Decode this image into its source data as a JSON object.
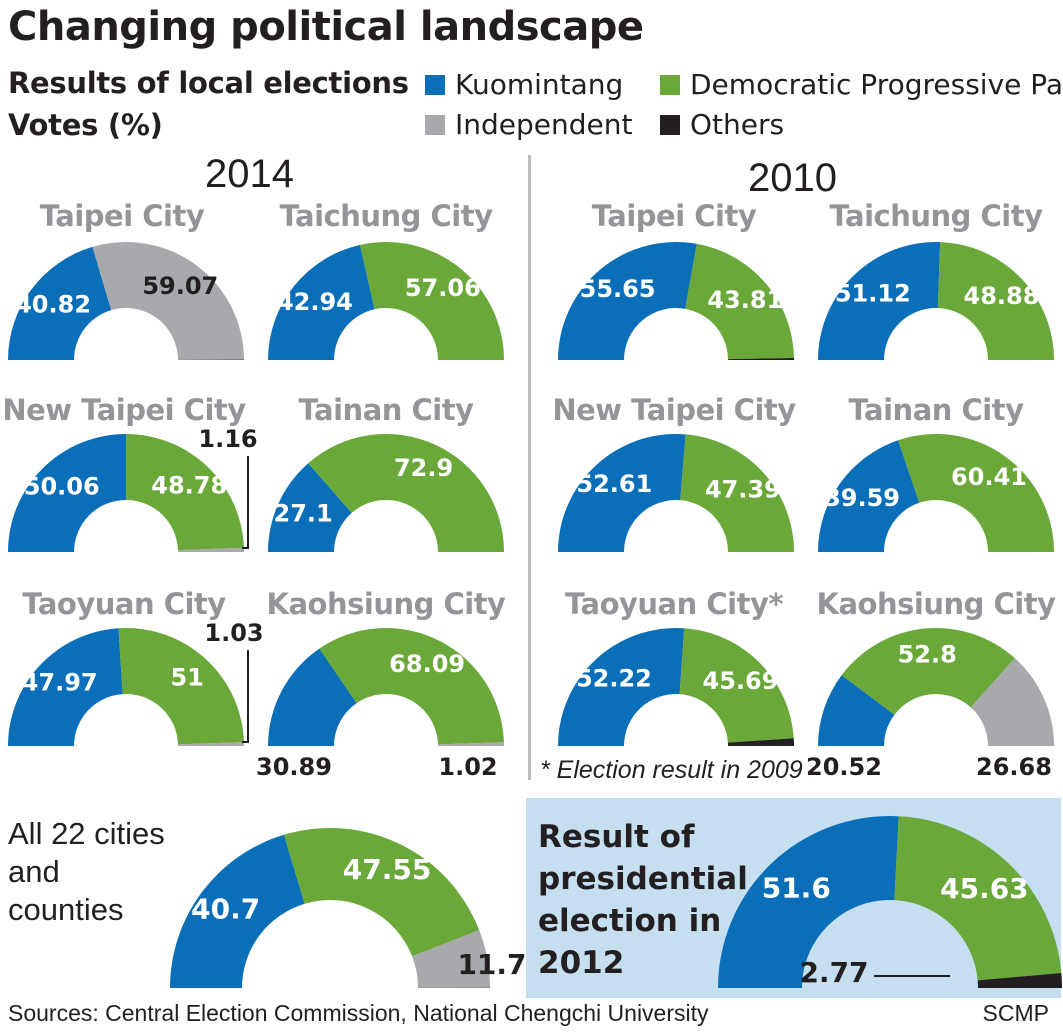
{
  "title": "Changing political landscape",
  "subtitle_line1": "Results of local elections",
  "subtitle_line2": "Votes (%)",
  "legend": [
    {
      "label": "Kuomintang",
      "color": "#0a6fb8"
    },
    {
      "label": "Democratic Progressive Party",
      "color": "#6aa83a"
    },
    {
      "label": "Independent",
      "color": "#a7a9ac"
    },
    {
      "label": "Others",
      "color": "#231f20"
    }
  ],
  "year_2014": "2014",
  "year_2010": "2010",
  "all_cities_label": "All 22 cities and counties",
  "presidential_label": "Result of presidential election in 2012",
  "footnote": "* Election result  in 2009",
  "sources": "Sources: Central Election Commission, National Chengchi University",
  "credit": "SCMP",
  "colors": {
    "KMT": "#0a6fb8",
    "DPP": "#6aa83a",
    "IND": "#a7a9ac",
    "OTH": "#231f20"
  },
  "chart_data": [
    {
      "type": "pie",
      "variant": "half-donut",
      "group": "2014",
      "title": "Taipei City",
      "slices": [
        {
          "party": "KMT",
          "value": 40.82,
          "label": "40.82"
        },
        {
          "party": "IND",
          "value": 59.07,
          "label": "59.07"
        },
        {
          "party": "OTH",
          "value": 0.11,
          "label": ""
        }
      ]
    },
    {
      "type": "pie",
      "variant": "half-donut",
      "group": "2014",
      "title": "Taichung City",
      "slices": [
        {
          "party": "KMT",
          "value": 42.94,
          "label": "42.94"
        },
        {
          "party": "DPP",
          "value": 57.06,
          "label": "57.06"
        }
      ]
    },
    {
      "type": "pie",
      "variant": "half-donut",
      "group": "2014",
      "title": "New Taipei City",
      "slices": [
        {
          "party": "KMT",
          "value": 50.06,
          "label": "50.06"
        },
        {
          "party": "DPP",
          "value": 48.78,
          "label": "48.78"
        },
        {
          "party": "IND",
          "value": 1.16,
          "label": "1.16"
        }
      ]
    },
    {
      "type": "pie",
      "variant": "half-donut",
      "group": "2014",
      "title": "Tainan City",
      "slices": [
        {
          "party": "KMT",
          "value": 27.1,
          "label": "27.1"
        },
        {
          "party": "DPP",
          "value": 72.9,
          "label": "72.9"
        }
      ]
    },
    {
      "type": "pie",
      "variant": "half-donut",
      "group": "2014",
      "title": "Taoyuan City",
      "slices": [
        {
          "party": "KMT",
          "value": 47.97,
          "label": "47.97"
        },
        {
          "party": "DPP",
          "value": 51,
          "label": "51"
        },
        {
          "party": "IND",
          "value": 1.03,
          "label": "1.03"
        }
      ]
    },
    {
      "type": "pie",
      "variant": "half-donut",
      "group": "2014",
      "title": "Kaohsiung City",
      "slices": [
        {
          "party": "KMT",
          "value": 30.89,
          "label": "30.89"
        },
        {
          "party": "DPP",
          "value": 68.09,
          "label": "68.09"
        },
        {
          "party": "IND",
          "value": 1.02,
          "label": "1.02"
        }
      ]
    },
    {
      "type": "pie",
      "variant": "half-donut",
      "group": "2010",
      "title": "Taipei City",
      "slices": [
        {
          "party": "KMT",
          "value": 55.65,
          "label": "55.65"
        },
        {
          "party": "DPP",
          "value": 43.81,
          "label": "43.81"
        },
        {
          "party": "OTH",
          "value": 0.54,
          "label": ""
        }
      ]
    },
    {
      "type": "pie",
      "variant": "half-donut",
      "group": "2010",
      "title": "Taichung City",
      "slices": [
        {
          "party": "KMT",
          "value": 51.12,
          "label": "51.12"
        },
        {
          "party": "DPP",
          "value": 48.88,
          "label": "48.88"
        }
      ]
    },
    {
      "type": "pie",
      "variant": "half-donut",
      "group": "2010",
      "title": "New Taipei City",
      "slices": [
        {
          "party": "KMT",
          "value": 52.61,
          "label": "52.61"
        },
        {
          "party": "DPP",
          "value": 47.39,
          "label": "47.39"
        }
      ]
    },
    {
      "type": "pie",
      "variant": "half-donut",
      "group": "2010",
      "title": "Tainan City",
      "slices": [
        {
          "party": "KMT",
          "value": 39.59,
          "label": "39.59"
        },
        {
          "party": "DPP",
          "value": 60.41,
          "label": "60.41"
        }
      ]
    },
    {
      "type": "pie",
      "variant": "half-donut",
      "group": "2010",
      "title": "Taoyuan City*",
      "slices": [
        {
          "party": "KMT",
          "value": 52.22,
          "label": "52.22"
        },
        {
          "party": "DPP",
          "value": 45.69,
          "label": "45.69"
        },
        {
          "party": "OTH",
          "value": 2.09,
          "label": ""
        }
      ]
    },
    {
      "type": "pie",
      "variant": "half-donut",
      "group": "2010",
      "title": "Kaohsiung City",
      "slices": [
        {
          "party": "KMT",
          "value": 20.52,
          "label": "20.52"
        },
        {
          "party": "DPP",
          "value": 52.8,
          "label": "52.8"
        },
        {
          "party": "IND",
          "value": 26.68,
          "label": "26.68"
        }
      ]
    },
    {
      "type": "pie",
      "variant": "half-donut",
      "group": "2014",
      "title": "",
      "slices": [
        {
          "party": "KMT",
          "value": 40.7,
          "label": "40.7"
        },
        {
          "party": "DPP",
          "value": 47.55,
          "label": "47.55"
        },
        {
          "party": "IND",
          "value": 11.7,
          "label": "11.7"
        },
        {
          "party": "OTH",
          "value": 0.05,
          "label": ""
        }
      ]
    },
    {
      "type": "pie",
      "variant": "half-donut",
      "group": "presidential-2012",
      "title": "",
      "slices": [
        {
          "party": "KMT",
          "value": 51.6,
          "label": "51.6"
        },
        {
          "party": "DPP",
          "value": 45.63,
          "label": "45.63"
        },
        {
          "party": "OTH",
          "value": 2.77,
          "label": "2.77"
        }
      ]
    }
  ]
}
